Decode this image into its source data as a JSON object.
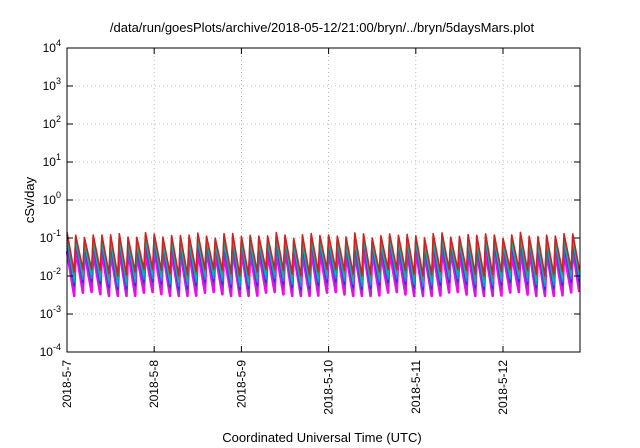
{
  "chart_data": {
    "type": "line",
    "title": "/data/run/goesPlots/archive/2018-05-12/21:00/bryn/../bryn/5daysMars.plot",
    "xlabel": "Coordinated Universal Time (UTC)",
    "ylabel": "cSv/day",
    "yscale": "log",
    "ylim": [
      0.0001,
      10000
    ],
    "xlim": [
      "2018-05-07",
      "2018-05-12 21:00"
    ],
    "grid": true,
    "y_ticks": [
      {
        "base": "10",
        "exp": "-4"
      },
      {
        "base": "10",
        "exp": "-3"
      },
      {
        "base": "10",
        "exp": "-2"
      },
      {
        "base": "10",
        "exp": "-1"
      },
      {
        "base": "10",
        "exp": "0"
      },
      {
        "base": "10",
        "exp": "1"
      },
      {
        "base": "10",
        "exp": "2"
      },
      {
        "base": "10",
        "exp": "3"
      },
      {
        "base": "10",
        "exp": "4"
      }
    ],
    "x_ticks": [
      "2018-5-7",
      "2018-5-8",
      "2018-5-9",
      "2018-5-10",
      "2018-5-11",
      "2018-5-12"
    ],
    "series_colors": [
      "#ff00ff",
      "#cc22cc",
      "#9933cc",
      "#3333cc",
      "#0099dd",
      "#00bbbb",
      "#22aa66",
      "#cc2222"
    ],
    "pattern": {
      "shape": "sawtooth",
      "cycles_per_day": 10,
      "peak_range": [
        0.03,
        0.15
      ],
      "trough_range": [
        0.003,
        0.015
      ]
    }
  }
}
